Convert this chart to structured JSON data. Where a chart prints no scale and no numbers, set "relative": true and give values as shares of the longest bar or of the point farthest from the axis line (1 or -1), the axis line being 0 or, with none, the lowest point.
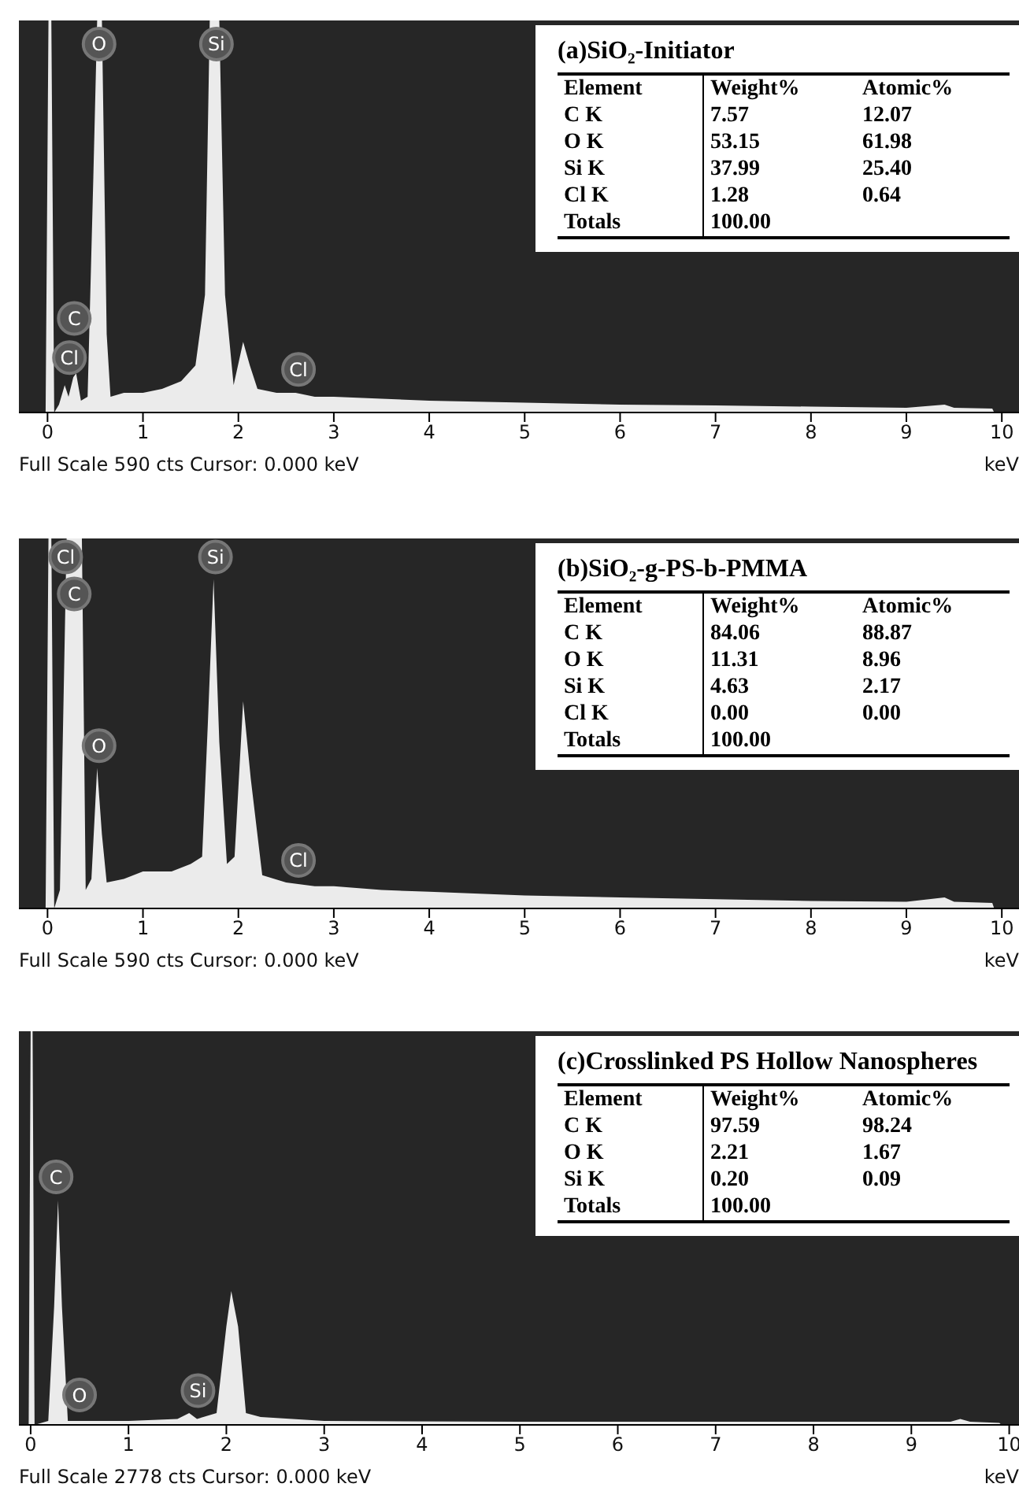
{
  "chart_data": [
    {
      "type": "area",
      "relative": true,
      "title": "(a)SiO₂-Initiator",
      "xlabel": "keV",
      "xlim": [
        -0.3,
        10.18
      ],
      "xticks": [
        0,
        1,
        2,
        3,
        4,
        5,
        6,
        7,
        8,
        9,
        10
      ],
      "x": [
        -0.02,
        0.01,
        0.04,
        0.07,
        0.12,
        0.18,
        0.22,
        0.27,
        0.3,
        0.35,
        0.42,
        0.48,
        0.52,
        0.57,
        0.62,
        0.66,
        0.8,
        1.0,
        1.2,
        1.4,
        1.55,
        1.65,
        1.7,
        1.8,
        1.86,
        1.95,
        2.05,
        2.12,
        2.2,
        2.4,
        2.6,
        2.8,
        3.0,
        3.5,
        4,
        5,
        6,
        7,
        8,
        9,
        9.4,
        9.5,
        9.9,
        9.92
      ],
      "series": [
        {
          "color": "#ebebeb",
          "values": [
            0,
            1,
            1,
            0,
            0.02,
            0.07,
            0.04,
            0.09,
            0.1,
            0.03,
            0.04,
            0.6,
            1,
            1,
            0.2,
            0.04,
            0.05,
            0.05,
            0.06,
            0.08,
            0.12,
            0.3,
            1,
            1,
            0.3,
            0.07,
            0.18,
            0.12,
            0.06,
            0.05,
            0.05,
            0.04,
            0.04,
            0.035,
            0.03,
            0.025,
            0.02,
            0.018,
            0.015,
            0.012,
            0.02,
            0.012,
            0.01,
            0
          ]
        }
      ],
      "annotations": [
        "Element\tWeight%\tAtomic%",
        "C K\t7.57\t12.07",
        "O K\t53.15\t61.98",
        "Si K\t37.99\t25.40",
        "Cl K\t1.28\t0.64",
        "Totals\t100.00",
        "Full Scale 590 cts  Cursor: 0.000 keV",
        {
          "text": "O",
          "x": 0.54,
          "y": 0.94
        },
        {
          "text": "Si",
          "x": 1.77,
          "y": 0.94
        },
        {
          "text": "C",
          "x": 0.28,
          "y": 0.24
        },
        {
          "text": "Cl",
          "x": 0.23,
          "y": 0.14
        },
        {
          "text": "Cl",
          "x": 2.63,
          "y": 0.11
        }
      ]
    },
    {
      "type": "area",
      "relative": true,
      "title": "(b)SiO₂-g-PS-b-PMMA",
      "xlabel": "keV",
      "xlim": [
        -0.3,
        10.18
      ],
      "xticks": [
        0,
        1,
        2,
        3,
        4,
        5,
        6,
        7,
        8,
        9,
        10
      ],
      "x": [
        -0.02,
        0.01,
        0.04,
        0.07,
        0.13,
        0.2,
        0.36,
        0.4,
        0.46,
        0.52,
        0.57,
        0.62,
        0.8,
        1,
        1.3,
        1.5,
        1.62,
        1.68,
        1.74,
        1.8,
        1.88,
        1.96,
        2.05,
        2.13,
        2.25,
        2.5,
        2.8,
        3,
        3.5,
        4,
        5,
        6,
        7,
        8,
        9,
        9.4,
        9.5,
        9.9,
        9.92
      ],
      "series": [
        {
          "color": "#ebebeb",
          "values": [
            0,
            1,
            1,
            0,
            0.05,
            1,
            1,
            0.05,
            0.08,
            0.38,
            0.2,
            0.07,
            0.08,
            0.1,
            0.1,
            0.12,
            0.14,
            0.5,
            0.89,
            0.45,
            0.12,
            0.14,
            0.56,
            0.35,
            0.09,
            0.07,
            0.06,
            0.06,
            0.05,
            0.045,
            0.035,
            0.03,
            0.025,
            0.02,
            0.018,
            0.03,
            0.018,
            0.015,
            0
          ]
        }
      ],
      "annotations": [
        "Element\tWeight%\tAtomic%",
        "C K\t84.06\t88.87",
        "O K\t11.31\t8.96",
        "Si K\t4.63\t2.17",
        "Cl K\t0.00\t0.00",
        "Totals\t100.00",
        "Full Scale 590 cts  Cursor: 0.000 keV",
        {
          "text": "Cl",
          "x": 0.19,
          "y": 0.95
        },
        {
          "text": "C",
          "x": 0.28,
          "y": 0.85
        },
        {
          "text": "O",
          "x": 0.54,
          "y": 0.44
        },
        {
          "text": "Si",
          "x": 1.76,
          "y": 0.95
        },
        {
          "text": "Cl",
          "x": 2.63,
          "y": 0.13
        }
      ]
    },
    {
      "type": "area",
      "relative": true,
      "title": "(c)Crosslinked PS Hollow Nanospheres",
      "xlabel": "keV",
      "xlim": [
        -0.12,
        10.1
      ],
      "xticks": [
        0,
        1,
        2,
        3,
        4,
        5,
        6,
        7,
        8,
        9,
        10
      ],
      "x": [
        -0.02,
        0.0,
        0.02,
        0.04,
        0.18,
        0.24,
        0.28,
        0.32,
        0.38,
        1,
        1.5,
        1.62,
        1.7,
        1.9,
        2.0,
        2.05,
        2.12,
        2.2,
        2.35,
        3,
        5,
        8,
        9.4,
        9.5,
        9.6,
        9.9,
        9.92
      ],
      "series": [
        {
          "color": "#ebebeb",
          "values": [
            0,
            1,
            1,
            0,
            0.01,
            0.3,
            0.57,
            0.3,
            0.01,
            0.01,
            0.015,
            0.03,
            0.015,
            0.03,
            0.25,
            0.34,
            0.25,
            0.03,
            0.02,
            0.01,
            0.008,
            0.008,
            0.008,
            0.015,
            0.008,
            0.005,
            0
          ]
        }
      ],
      "annotations": [
        "Element\tWeight%\tAtomic%",
        "C K\t97.59\t98.24",
        "O K\t2.21\t1.67",
        "Si K\t0.20\t0.09",
        "Totals\t100.00",
        "Full Scale 2778 cts  Cursor: 0.000 keV",
        {
          "text": "C",
          "x": 0.26,
          "y": 0.63
        },
        {
          "text": "O",
          "x": 0.5,
          "y": 0.076
        },
        {
          "text": "Si",
          "x": 1.71,
          "y": 0.087
        }
      ]
    }
  ]
}
